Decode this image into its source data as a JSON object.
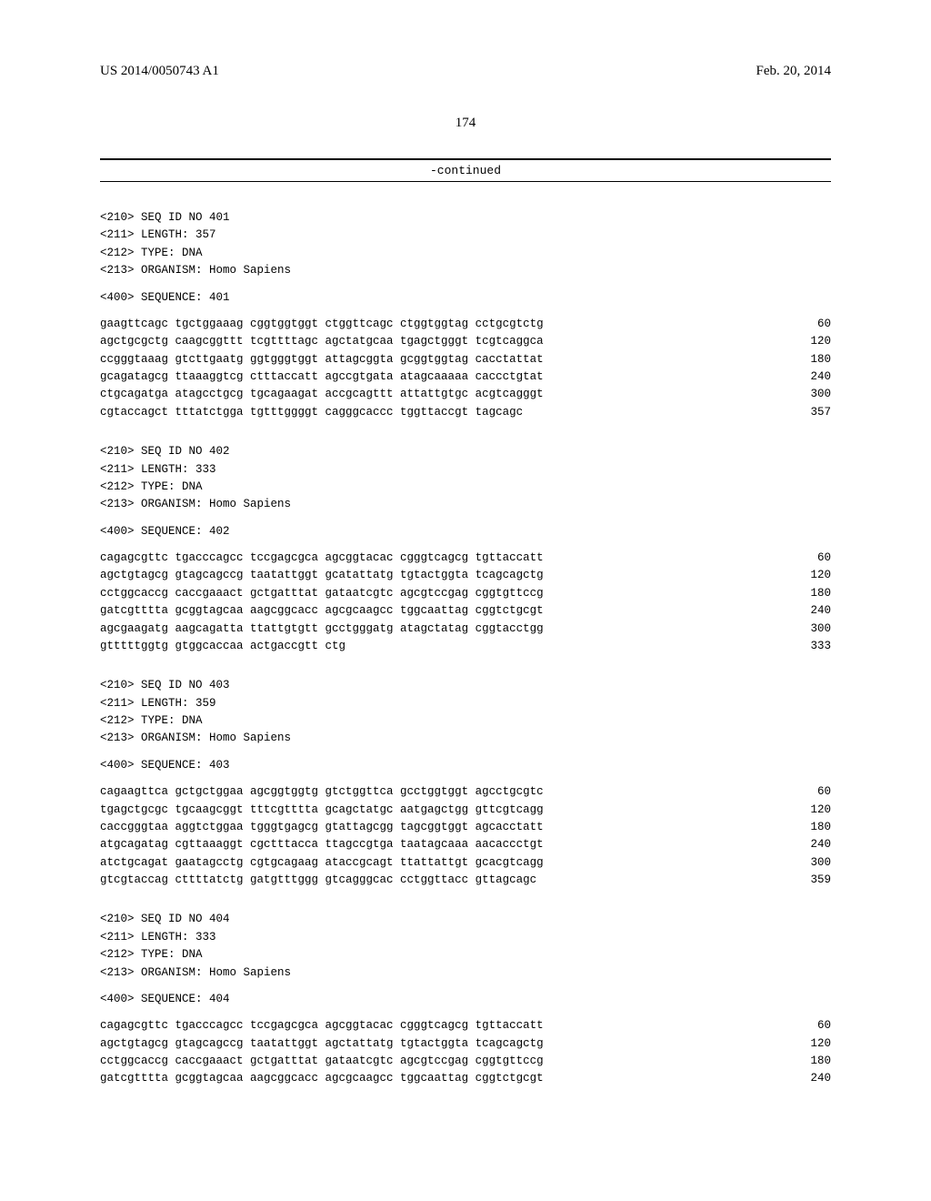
{
  "header": {
    "publication_number": "US 2014/0050743 A1",
    "publication_date": "Feb. 20, 2014",
    "page_number": "174",
    "continued_label": "-continued"
  },
  "sequences": [
    {
      "id": "401",
      "length": "357",
      "type": "DNA",
      "organism": "Homo Sapiens",
      "lines": [
        {
          "text": "gaagttcagc tgctggaaag cggtggtggt ctggttcagc ctggtggtag cctgcgtctg",
          "pos": "60"
        },
        {
          "text": "agctgcgctg caagcggttt tcgttttagc agctatgcaa tgagctgggt tcgtcaggca",
          "pos": "120"
        },
        {
          "text": "ccgggtaaag gtcttgaatg ggtgggtggt attagcggta gcggtggtag cacctattat",
          "pos": "180"
        },
        {
          "text": "gcagatagcg ttaaaggtcg ctttaccatt agccgtgata atagcaaaaa caccctgtat",
          "pos": "240"
        },
        {
          "text": "ctgcagatga atagcctgcg tgcagaagat accgcagttt attattgtgc acgtcagggt",
          "pos": "300"
        },
        {
          "text": "cgtaccagct tttatctgga tgtttggggt cagggcaccc tggttaccgt tagcagc",
          "pos": "357"
        }
      ]
    },
    {
      "id": "402",
      "length": "333",
      "type": "DNA",
      "organism": "Homo Sapiens",
      "lines": [
        {
          "text": "cagagcgttc tgacccagcc tccgagcgca agcggtacac cgggtcagcg tgttaccatt",
          "pos": "60"
        },
        {
          "text": "agctgtagcg gtagcagccg taatattggt gcatattatg tgtactggta tcagcagctg",
          "pos": "120"
        },
        {
          "text": "cctggcaccg caccgaaact gctgatttat gataatcgtc agcgtccgag cggtgttccg",
          "pos": "180"
        },
        {
          "text": "gatcgtttta gcggtagcaa aagcggcacc agcgcaagcc tggcaattag cggtctgcgt",
          "pos": "240"
        },
        {
          "text": "agcgaagatg aagcagatta ttattgtgtt gcctgggatg atagctatag cggtacctgg",
          "pos": "300"
        },
        {
          "text": "gtttttggtg gtggcaccaa actgaccgtt ctg",
          "pos": "333"
        }
      ]
    },
    {
      "id": "403",
      "length": "359",
      "type": "DNA",
      "organism": "Homo Sapiens",
      "lines": [
        {
          "text": "cagaagttca gctgctggaa agcggtggtg gtctggttca gcctggtggt agcctgcgtc",
          "pos": "60"
        },
        {
          "text": "tgagctgcgc tgcaagcggt tttcgtttta gcagctatgc aatgagctgg gttcgtcagg",
          "pos": "120"
        },
        {
          "text": "caccgggtaa aggtctggaa tgggtgagcg gtattagcgg tagcggtggt agcacctatt",
          "pos": "180"
        },
        {
          "text": "atgcagatag cgttaaaggt cgctttacca ttagccgtga taatagcaaa aacaccctgt",
          "pos": "240"
        },
        {
          "text": "atctgcagat gaatagcctg cgtgcagaag ataccgcagt ttattattgt gcacgtcagg",
          "pos": "300"
        },
        {
          "text": "gtcgtaccag cttttatctg gatgtttggg gtcagggcac cctggttacc gttagcagc",
          "pos": "359"
        }
      ]
    },
    {
      "id": "404",
      "length": "333",
      "type": "DNA",
      "organism": "Homo Sapiens",
      "lines": [
        {
          "text": "cagagcgttc tgacccagcc tccgagcgca agcggtacac cgggtcagcg tgttaccatt",
          "pos": "60"
        },
        {
          "text": "agctgtagcg gtagcagccg taatattggt agctattatg tgtactggta tcagcagctg",
          "pos": "120"
        },
        {
          "text": "cctggcaccg caccgaaact gctgatttat gataatcgtc agcgtccgag cggtgttccg",
          "pos": "180"
        },
        {
          "text": "gatcgtttta gcggtagcaa aagcggcacc agcgcaagcc tggcaattag cggtctgcgt",
          "pos": "240"
        }
      ]
    }
  ],
  "labels": {
    "seq_id_prefix": "<210> SEQ ID NO ",
    "length_prefix": "<211> LENGTH: ",
    "type_prefix": "<212> TYPE: ",
    "org_prefix": "<213> ORGANISM: ",
    "sequence_prefix": "<400> SEQUENCE: "
  }
}
